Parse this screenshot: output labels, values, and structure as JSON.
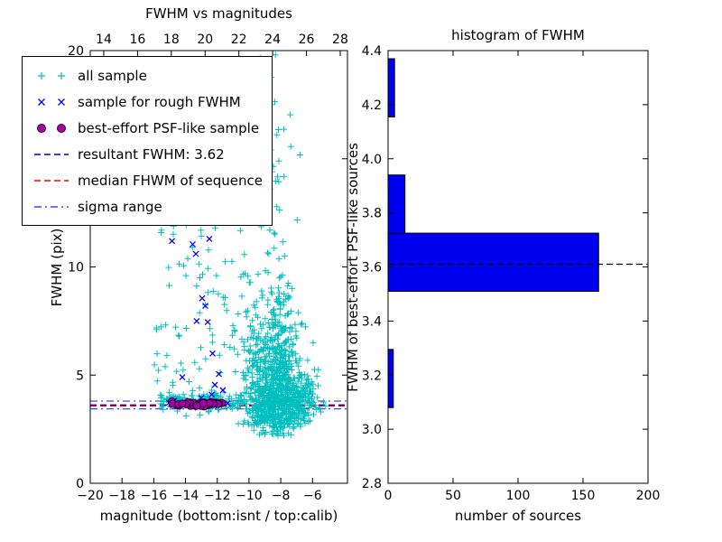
{
  "figure": {
    "background": "#ffffff"
  },
  "legend": {
    "items": [
      {
        "label": "all sample",
        "marker": "plus",
        "color": "#00bfbf"
      },
      {
        "label": "sample for rough FWHM",
        "marker": "x",
        "color": "#0000ff"
      },
      {
        "label": "best-effort PSF-like sample",
        "marker": "circle",
        "color": "#aa00aa",
        "edge": "#2a002a"
      },
      {
        "label": "resultant FWHM: 3.62",
        "line": "dashed",
        "color": "#0000cd"
      },
      {
        "label": "median FHWM of sequence",
        "line": "dashed",
        "color": "#ff0000"
      },
      {
        "label": "sigma range",
        "line": "dashdot",
        "color": "#4444ff"
      }
    ]
  },
  "chart_data": [
    {
      "type": "scatter",
      "title": "FWHM vs magnitudes",
      "xlabel": "magnitude (bottom:isnt / top:calib)",
      "ylabel": "FWHM (pix)",
      "xlim": [
        -20,
        -3.8
      ],
      "ylim": [
        0,
        20
      ],
      "top_xlim": [
        13.2,
        28.43
      ],
      "xticks": [
        {
          "v": -20,
          "label": "−20"
        },
        {
          "v": -18,
          "label": "−18"
        },
        {
          "v": -16,
          "label": "−16"
        },
        {
          "v": -14,
          "label": "−14"
        },
        {
          "v": -12,
          "label": "−12"
        },
        {
          "v": -10,
          "label": "−10"
        },
        {
          "v": -8,
          "label": "−8"
        },
        {
          "v": -6,
          "label": "−6"
        }
      ],
      "top_xticks": [
        {
          "v": 14,
          "label": "14"
        },
        {
          "v": 16,
          "label": "16"
        },
        {
          "v": 18,
          "label": "18"
        },
        {
          "v": 20,
          "label": "20"
        },
        {
          "v": 22,
          "label": "22"
        },
        {
          "v": 24,
          "label": "24"
        },
        {
          "v": 26,
          "label": "26"
        },
        {
          "v": 28,
          "label": "28"
        }
      ],
      "yticks": [
        {
          "v": 0,
          "label": "0"
        },
        {
          "v": 5,
          "label": "5"
        },
        {
          "v": 10,
          "label": "10"
        },
        {
          "v": 15,
          "label": "15"
        },
        {
          "v": 20,
          "label": "20"
        }
      ],
      "seed": 7,
      "series": [
        {
          "name": "all sample",
          "marker": "plus",
          "color": "#00bfbf",
          "clusters": [
            {
              "count": 850,
              "x": {
                "dist": "normal",
                "mean": -8.5,
                "sd": 0.85
              },
              "y": {
                "dist": "halfnormal_up",
                "base": 2.7,
                "sd": 2.8,
                "max": 20
              }
            },
            {
              "count": 130,
              "x": {
                "dist": "uniform",
                "min": -15.6,
                "max": -10.3
              },
              "y": {
                "dist": "normal",
                "mean": 3.8,
                "sd": 0.22
              }
            },
            {
              "count": 90,
              "x": {
                "dist": "uniform",
                "min": -16.0,
                "max": -9.8
              },
              "y": {
                "dist": "uniform",
                "min": 4.2,
                "max": 13.0
              }
            },
            {
              "count": 180,
              "x": {
                "dist": "normal",
                "mean": -6.9,
                "sd": 0.6
              },
              "y": {
                "dist": "normal",
                "mean": 3.9,
                "sd": 0.55
              }
            },
            {
              "count": 40,
              "x": {
                "dist": "normal",
                "mean": -8.7,
                "sd": 0.8
              },
              "y": {
                "dist": "uniform",
                "min": 12.5,
                "max": 20.0
              }
            },
            {
              "count": 40,
              "x": {
                "dist": "normal",
                "mean": -8.4,
                "sd": 0.8
              },
              "y": {
                "dist": "uniform",
                "min": 2.2,
                "max": 2.8
              }
            }
          ]
        },
        {
          "name": "sample for rough FWHM",
          "marker": "x",
          "color": "#0000ff",
          "points": [
            [
              -15.05,
              3.72
            ],
            [
              -14.7,
              3.82
            ],
            [
              -14.45,
              3.6
            ],
            [
              -14.1,
              3.68
            ],
            [
              -13.8,
              3.78
            ],
            [
              -13.45,
              3.62
            ],
            [
              -13.15,
              3.7
            ],
            [
              -12.8,
              3.66
            ],
            [
              -12.5,
              3.74
            ],
            [
              -12.2,
              3.6
            ],
            [
              -11.9,
              3.76
            ],
            [
              -11.6,
              3.66
            ],
            [
              -11.35,
              3.7
            ],
            [
              -14.85,
              11.2
            ],
            [
              -13.55,
              11.05
            ],
            [
              -12.5,
              11.3
            ],
            [
              -13.35,
              10.6
            ],
            [
              -12.95,
              8.55
            ],
            [
              -12.75,
              8.2
            ],
            [
              -13.3,
              7.5
            ],
            [
              -12.6,
              7.45
            ],
            [
              -12.3,
              6.0
            ],
            [
              -11.9,
              5.05
            ],
            [
              -12.15,
              4.55
            ],
            [
              -14.2,
              4.9
            ],
            [
              -11.65,
              4.3
            ],
            [
              -13.0,
              3.95
            ],
            [
              -12.35,
              4.1
            ]
          ]
        },
        {
          "name": "best-effort PSF-like sample",
          "marker": "circle",
          "color": "#aa00aa",
          "edge": "#2a002a",
          "clusters": [
            {
              "count": 42,
              "x": {
                "dist": "uniform",
                "min": -14.9,
                "max": -11.6
              },
              "y": {
                "dist": "normal",
                "mean": 3.66,
                "sd": 0.05
              }
            }
          ]
        }
      ],
      "lines": [
        {
          "name": "resultant FWHM: 3.62",
          "value": 3.62,
          "style": "dashed",
          "color": "#0000cd"
        },
        {
          "name": "median FHWM of sequence",
          "value": 3.57,
          "style": "dashed",
          "color": "#ff0000"
        },
        {
          "name": "sigma range",
          "values": [
            3.44,
            3.8
          ],
          "style": "dashdot",
          "color": "#4444ff"
        }
      ]
    },
    {
      "type": "bar",
      "orientation": "horizontal",
      "title": "histogram of FWHM",
      "xlabel": "number of sources",
      "ylabel": "FWHM of best-effort PSF-like sources",
      "xlim": [
        0,
        200
      ],
      "ylim": [
        2.8,
        4.4
      ],
      "xticks": [
        {
          "v": 0,
          "label": "0"
        },
        {
          "v": 50,
          "label": "50"
        },
        {
          "v": 100,
          "label": "100"
        },
        {
          "v": 150,
          "label": "150"
        },
        {
          "v": 200,
          "label": "200"
        }
      ],
      "yticks": [
        {
          "v": 2.8,
          "label": "2.8"
        },
        {
          "v": 3.0,
          "label": "3.0"
        },
        {
          "v": 3.2,
          "label": "3.2"
        },
        {
          "v": 3.4,
          "label": "3.4"
        },
        {
          "v": 3.6,
          "label": "3.6"
        },
        {
          "v": 3.8,
          "label": "3.8"
        },
        {
          "v": 4.0,
          "label": "4.0"
        },
        {
          "v": 4.2,
          "label": "4.2"
        },
        {
          "v": 4.4,
          "label": "4.4"
        }
      ],
      "bin_edges": [
        3.08,
        3.295,
        3.51,
        3.725,
        3.94,
        4.155,
        4.37
      ],
      "counts": [
        4,
        0,
        162,
        13,
        0,
        5
      ],
      "bar_color": "#0000ee",
      "bar_edge": "#000000",
      "marker_line": {
        "value": 3.61,
        "style": "dashed",
        "color": "#000000"
      }
    }
  ]
}
